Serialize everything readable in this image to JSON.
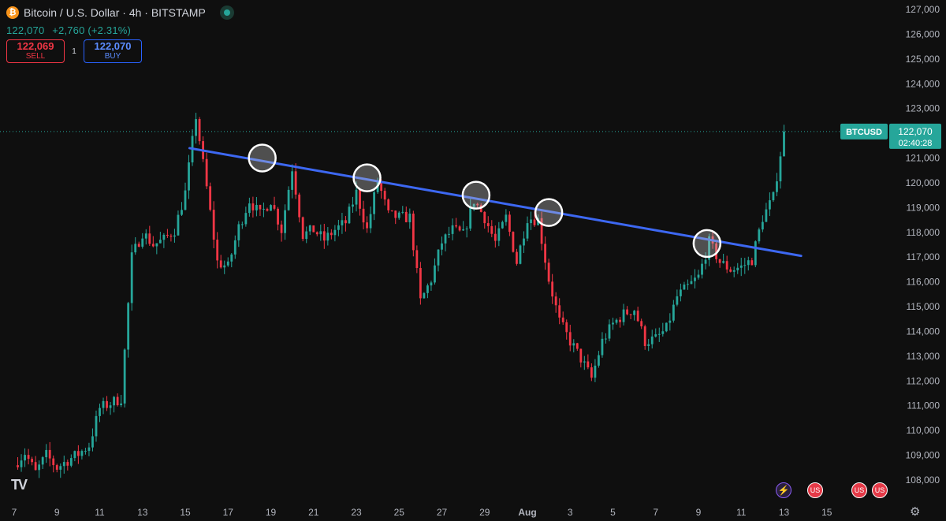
{
  "header": {
    "title": "Bitcoin / U.S. Dollar · 4h · BITSTAMP",
    "last_price": "122,070",
    "change": "+2,760 (+2.31%)",
    "sell_price": "122,069",
    "sell_label": "SELL",
    "spread": "1",
    "buy_price": "122,070",
    "buy_label": "BUY"
  },
  "price_tag": {
    "symbol": "BTCUSD",
    "price": "122,070",
    "countdown": "02:40:28"
  },
  "colors": {
    "up": "#26a69a",
    "down": "#f23645",
    "trendline": "#3d68f2",
    "background": "#0f0f0f"
  },
  "chart_data": {
    "type": "candlestick",
    "interval": "4h",
    "y_ticks": [
      108000,
      109000,
      110000,
      111000,
      112000,
      113000,
      114000,
      115000,
      116000,
      117000,
      118000,
      119000,
      120000,
      121000,
      122000,
      123000,
      124000,
      125000,
      126000,
      127000
    ],
    "ylim": [
      107500,
      127200
    ],
    "x_ticks": [
      "7",
      "9",
      "11",
      "13",
      "15",
      "17",
      "19",
      "21",
      "23",
      "25",
      "27",
      "29",
      "Aug",
      "3",
      "5",
      "7",
      "9",
      "11",
      "13",
      "15"
    ],
    "xlim": [
      0,
      40
    ],
    "last_price": 122070,
    "prices": [
      [
        0,
        108600
      ],
      [
        0.5,
        109100
      ],
      [
        1,
        108300
      ],
      [
        1.5,
        109000
      ],
      [
        2,
        108500
      ],
      [
        2.5,
        108800
      ],
      [
        3,
        109050
      ],
      [
        3.5,
        109400
      ],
      [
        4,
        110900
      ],
      [
        4.5,
        111100
      ],
      [
        5,
        111300
      ],
      [
        5.5,
        117000
      ],
      [
        6,
        118000
      ],
      [
        6.5,
        117500
      ],
      [
        7,
        117700
      ],
      [
        7.5,
        118100
      ],
      [
        8,
        119600
      ],
      [
        8.5,
        122700
      ],
      [
        9,
        119800
      ],
      [
        9.5,
        116800
      ],
      [
        10,
        116600
      ],
      [
        10.5,
        118200
      ],
      [
        11,
        119300
      ],
      [
        11.5,
        118700
      ],
      [
        12,
        119300
      ],
      [
        12.5,
        118100
      ],
      [
        13,
        120600
      ],
      [
        13.5,
        117900
      ],
      [
        14,
        118100
      ],
      [
        14.5,
        117700
      ],
      [
        15,
        118100
      ],
      [
        15.5,
        118400
      ],
      [
        16,
        119600
      ],
      [
        16.5,
        118100
      ],
      [
        17,
        120100
      ],
      [
        17.5,
        118700
      ],
      [
        18,
        118600
      ],
      [
        18.5,
        118600
      ],
      [
        19,
        115200
      ],
      [
        19.5,
        116100
      ],
      [
        20,
        117600
      ],
      [
        20.5,
        118100
      ],
      [
        21,
        117900
      ],
      [
        21.5,
        119300
      ],
      [
        22,
        118600
      ],
      [
        22.5,
        117600
      ],
      [
        23,
        118600
      ],
      [
        23.5,
        116800
      ],
      [
        24,
        118600
      ],
      [
        24.5,
        118500
      ],
      [
        25,
        116100
      ],
      [
        25.5,
        114400
      ],
      [
        26,
        113600
      ],
      [
        26.5,
        112900
      ],
      [
        27,
        112100
      ],
      [
        27.5,
        113600
      ],
      [
        28,
        114300
      ],
      [
        28.5,
        114700
      ],
      [
        29,
        114900
      ],
      [
        29.5,
        113600
      ],
      [
        30,
        113700
      ],
      [
        30.5,
        114100
      ],
      [
        31,
        115400
      ],
      [
        31.5,
        115800
      ],
      [
        32,
        116200
      ],
      [
        32.5,
        117600
      ],
      [
        33,
        116800
      ],
      [
        33.5,
        116500
      ],
      [
        34,
        116600
      ],
      [
        34.5,
        116900
      ],
      [
        35,
        118600
      ],
      [
        35.5,
        119400
      ],
      [
        36,
        122070
      ]
    ],
    "trendline": [
      [
        8.2,
        121400
      ],
      [
        36.8,
        117050
      ]
    ],
    "touch_points": [
      [
        11.6,
        121000
      ],
      [
        16.5,
        120200
      ],
      [
        21.6,
        119500
      ],
      [
        25.0,
        118800
      ],
      [
        32.4,
        117550
      ]
    ]
  },
  "icons": {
    "logo": "tradingview-logo",
    "events": [
      "lightning-event-icon",
      "us-flag-event-icon",
      "us-flag-event-icon",
      "us-flag-event-icon"
    ],
    "settings": "gear-icon"
  }
}
